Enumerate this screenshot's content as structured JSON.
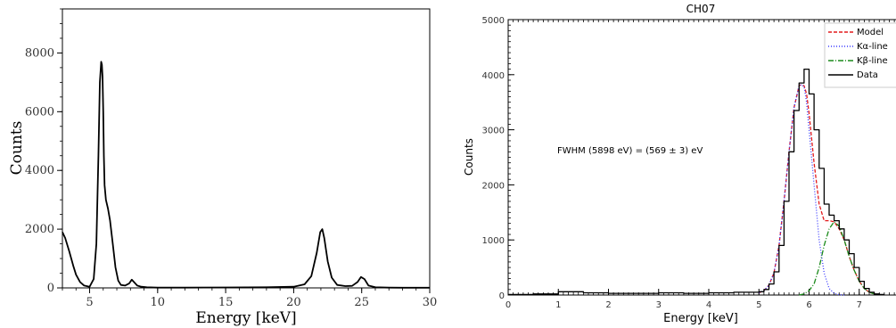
{
  "chart_data": [
    {
      "type": "line",
      "title": "",
      "xlabel": "Energy [keV]",
      "ylabel": "Counts",
      "xlim": [
        3,
        30
      ],
      "ylim": [
        0,
        9500
      ],
      "xticks": [
        5,
        10,
        15,
        20,
        25,
        30
      ],
      "yticks": [
        0,
        2000,
        4000,
        6000,
        8000
      ],
      "grid": false,
      "series": [
        {
          "color": "#000000",
          "x": [
            3.0,
            3.2,
            3.5,
            3.8,
            4.0,
            4.3,
            4.6,
            5.0,
            5.3,
            5.5,
            5.65,
            5.75,
            5.85,
            5.9,
            5.95,
            6.0,
            6.05,
            6.1,
            6.2,
            6.35,
            6.5,
            6.7,
            6.9,
            7.1,
            7.3,
            7.6,
            7.9,
            8.1,
            8.3,
            8.5,
            8.8,
            9.2,
            10,
            12,
            15,
            18,
            20,
            20.8,
            21.3,
            21.7,
            21.95,
            22.1,
            22.25,
            22.5,
            22.8,
            23.2,
            23.8,
            24.3,
            24.7,
            24.95,
            25.2,
            25.5,
            26,
            27,
            28,
            29,
            30
          ],
          "y": [
            1900,
            1700,
            1250,
            750,
            450,
            200,
            80,
            40,
            300,
            1500,
            4500,
            7000,
            7700,
            7600,
            7200,
            6000,
            4500,
            3500,
            3000,
            2700,
            2300,
            1500,
            700,
            250,
            100,
            80,
            150,
            280,
            180,
            80,
            40,
            20,
            10,
            10,
            15,
            20,
            40,
            120,
            400,
            1200,
            1900,
            2000,
            1700,
            900,
            350,
            100,
            60,
            70,
            200,
            370,
            300,
            80,
            20,
            10,
            5,
            5,
            5
          ]
        }
      ]
    },
    {
      "type": "line",
      "title": "CH07",
      "xlabel": "Energy [keV]",
      "ylabel": "Counts",
      "xlim": [
        0,
        8
      ],
      "ylim": [
        0,
        5000
      ],
      "xticks": [
        0,
        1,
        2,
        3,
        4,
        5,
        6,
        7
      ],
      "yticks": [
        0,
        1000,
        2000,
        3000,
        4000,
        5000
      ],
      "grid": false,
      "legend": "top-right",
      "annotation": "FWHM (5898 eV) = (569 ± 3) eV",
      "series": [
        {
          "name": "Model",
          "color": "#e31a1c",
          "style": "dashed",
          "x": [
            5.0,
            5.1,
            5.2,
            5.3,
            5.4,
            5.5,
            5.6,
            5.7,
            5.8,
            5.85,
            5.9,
            5.95,
            6.0,
            6.1,
            6.2,
            6.3,
            6.4,
            6.5,
            6.6,
            6.7,
            6.8,
            6.9,
            7.0,
            7.1,
            7.2,
            7.3
          ],
          "y": [
            40,
            80,
            180,
            400,
            900,
            1700,
            2600,
            3400,
            3800,
            3820,
            3800,
            3650,
            3300,
            2400,
            1650,
            1350,
            1350,
            1330,
            1200,
            1000,
            700,
            450,
            250,
            120,
            50,
            20
          ]
        },
        {
          "name": "Kα-line",
          "color": "#3a3aff",
          "style": "dotted",
          "x": [
            5.0,
            5.1,
            5.2,
            5.3,
            5.4,
            5.5,
            5.6,
            5.7,
            5.8,
            5.85,
            5.9,
            5.95,
            6.0,
            6.1,
            6.2,
            6.3,
            6.4,
            6.5,
            6.6,
            6.7
          ],
          "y": [
            40,
            80,
            180,
            400,
            900,
            1700,
            2600,
            3400,
            3800,
            3820,
            3780,
            3500,
            3000,
            2000,
            1000,
            400,
            120,
            30,
            5,
            0
          ]
        },
        {
          "name": "Kβ-line",
          "color": "#1a8a1a",
          "style": "dashdot",
          "x": [
            5.8,
            5.9,
            6.0,
            6.1,
            6.2,
            6.3,
            6.4,
            6.5,
            6.6,
            6.7,
            6.8,
            6.9,
            7.0,
            7.1,
            7.2,
            7.3
          ],
          "y": [
            0,
            20,
            80,
            200,
            500,
            900,
            1200,
            1330,
            1250,
            1000,
            700,
            450,
            250,
            120,
            50,
            20
          ]
        },
        {
          "name": "Data",
          "color": "#000000",
          "style": "step",
          "x": [
            0.0,
            0.5,
            1.0,
            1.5,
            2.0,
            2.5,
            3.0,
            3.5,
            4.0,
            4.5,
            5.0,
            5.1,
            5.2,
            5.3,
            5.4,
            5.5,
            5.6,
            5.7,
            5.8,
            5.9,
            6.0,
            6.1,
            6.2,
            6.3,
            6.4,
            6.5,
            6.6,
            6.7,
            6.8,
            6.9,
            7.0,
            7.1,
            7.2,
            7.3,
            7.4
          ],
          "y": [
            10,
            20,
            60,
            40,
            30,
            30,
            40,
            30,
            40,
            50,
            60,
            100,
            200,
            420,
            900,
            1700,
            2600,
            3350,
            3850,
            4100,
            3650,
            3000,
            2300,
            1650,
            1450,
            1350,
            1200,
            1000,
            750,
            500,
            250,
            120,
            50,
            20,
            10
          ]
        }
      ]
    }
  ]
}
